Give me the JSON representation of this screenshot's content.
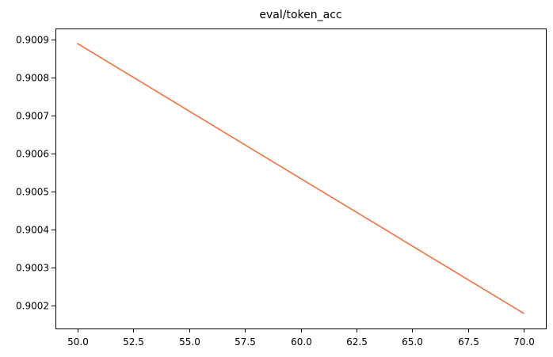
{
  "chart_data": {
    "type": "line",
    "title": "eval/token_acc",
    "xlabel": "",
    "ylabel": "",
    "xlim": [
      49.0,
      71.0
    ],
    "ylim": [
      0.90014,
      0.90093
    ],
    "x_ticks": [
      50.0,
      52.5,
      55.0,
      57.5,
      60.0,
      62.5,
      65.0,
      67.5,
      70.0
    ],
    "x_tick_labels": [
      "50.0",
      "52.5",
      "55.0",
      "57.5",
      "60.0",
      "62.5",
      "65.0",
      "67.5",
      "70.0"
    ],
    "y_ticks": [
      0.9002,
      0.9003,
      0.9004,
      0.9005,
      0.9006,
      0.9007,
      0.9008,
      0.9009
    ],
    "y_tick_labels": [
      "0.9002",
      "0.9003",
      "0.9004",
      "0.9005",
      "0.9006",
      "0.9007",
      "0.9008",
      "0.9009"
    ],
    "grid": false,
    "series": [
      {
        "color": "#f4703d",
        "x": [
          50,
          70
        ],
        "y": [
          0.90089,
          0.90018
        ]
      }
    ]
  }
}
